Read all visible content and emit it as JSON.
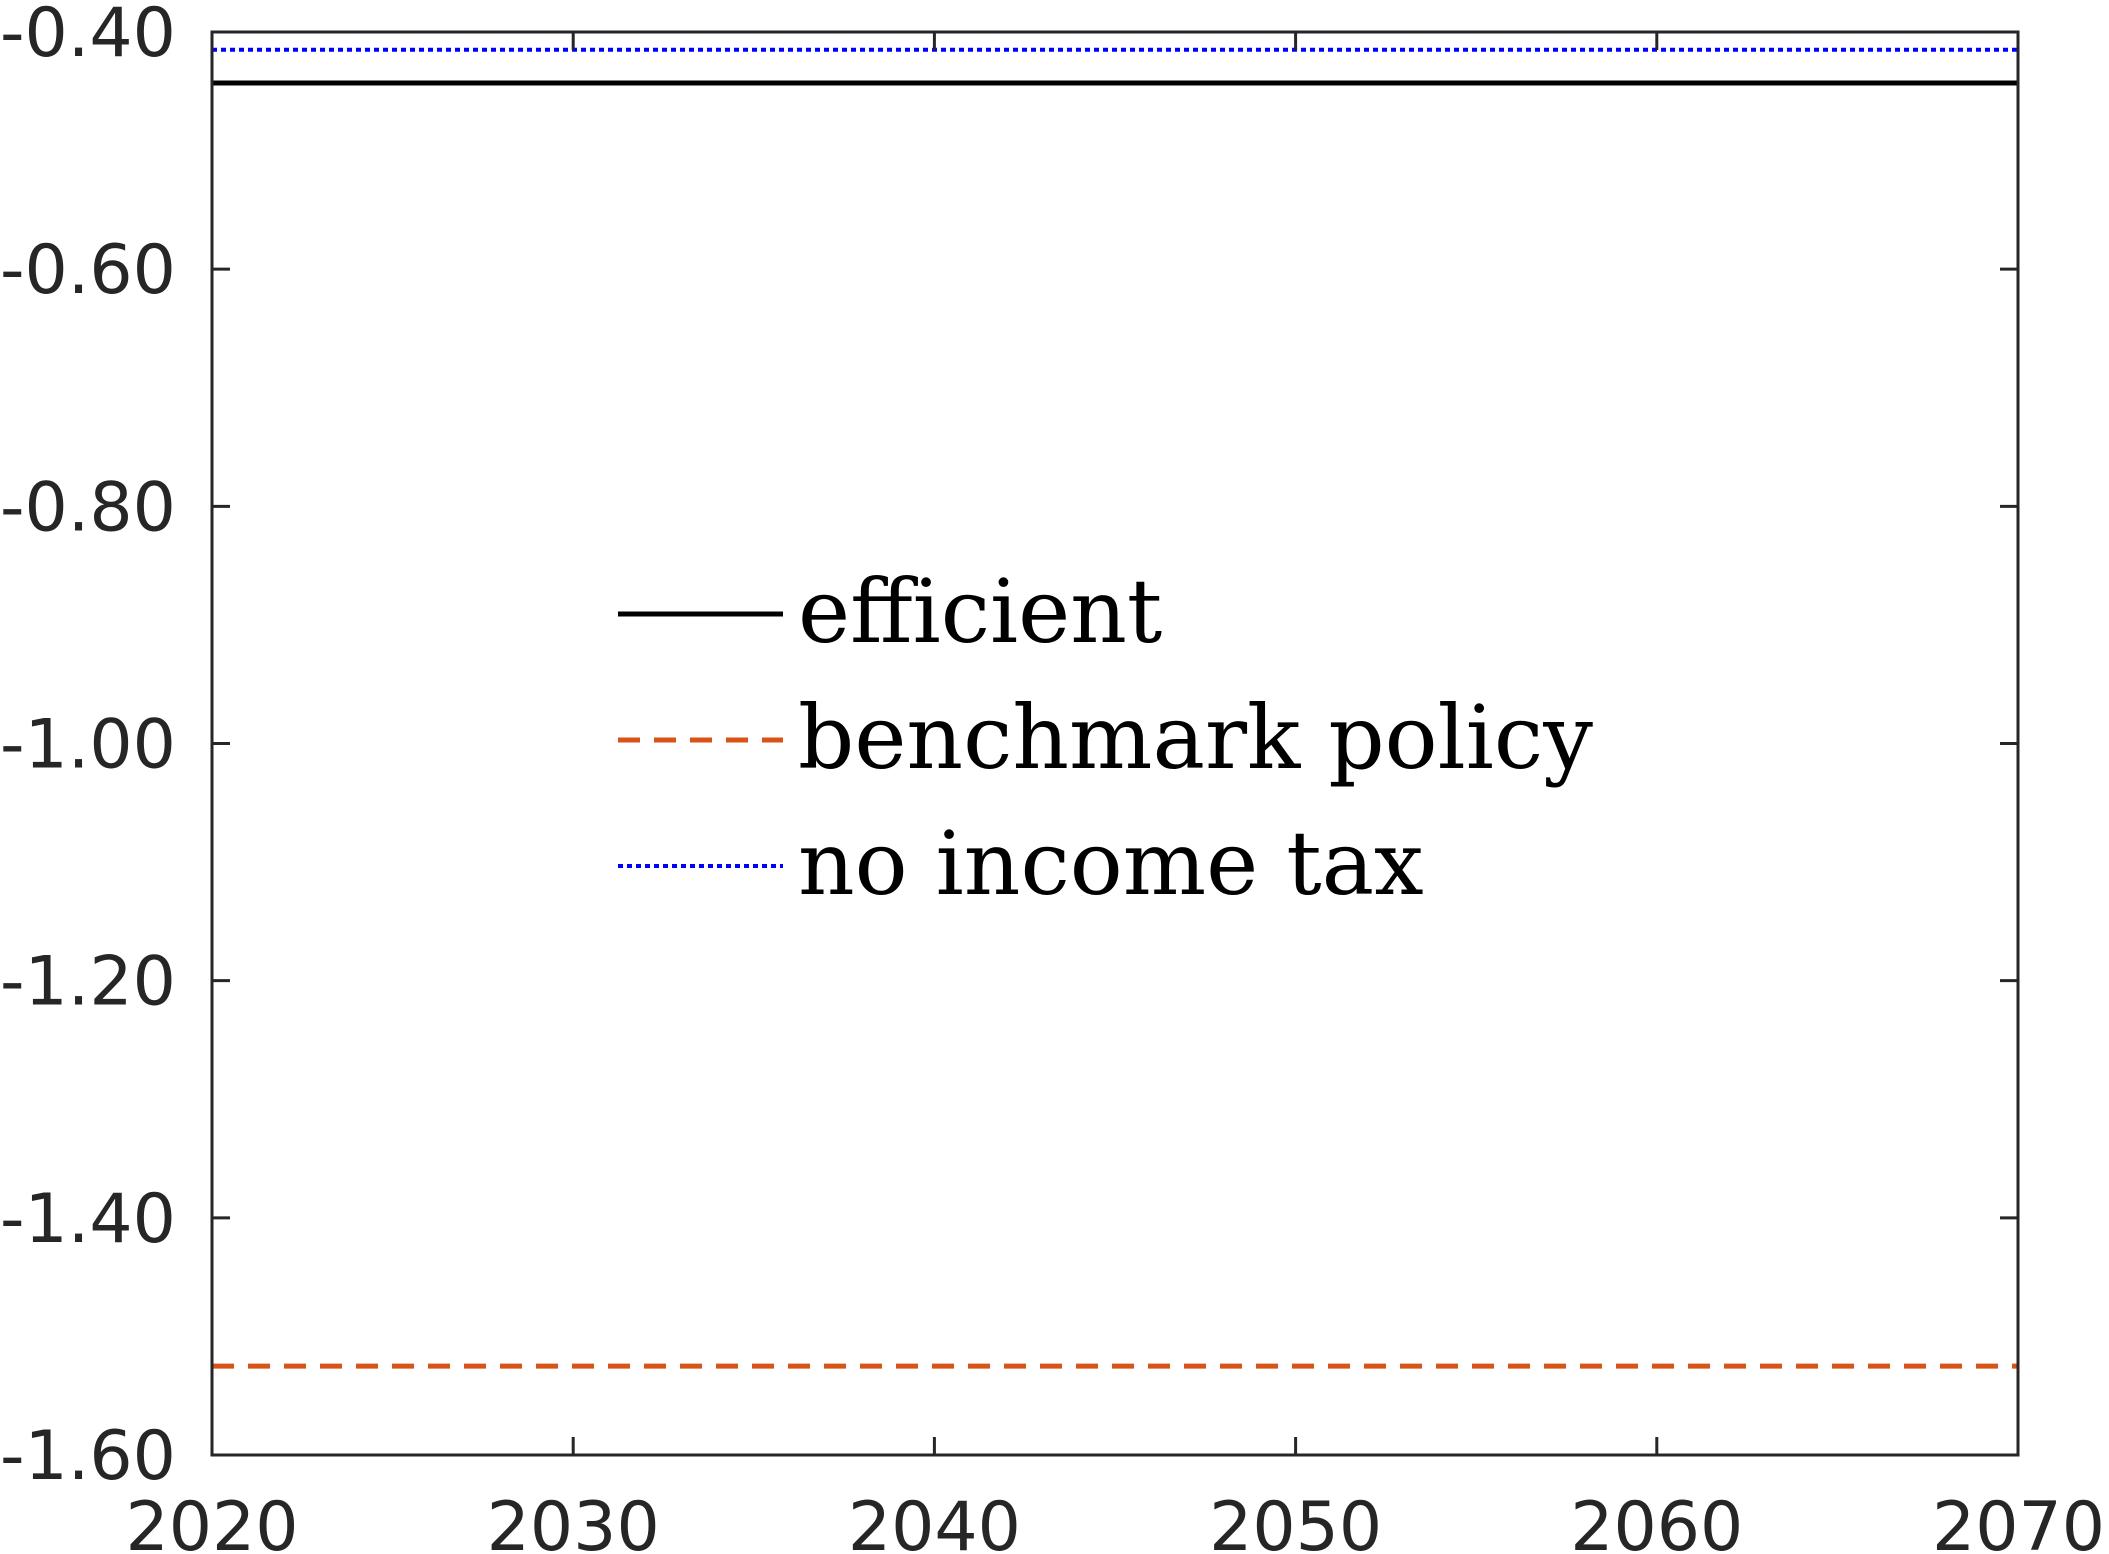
{
  "chart_data": {
    "type": "line",
    "title": "",
    "xlabel": "",
    "ylabel": "",
    "xlim": [
      2020,
      2070
    ],
    "ylim": [
      -1.6,
      -0.4
    ],
    "x_ticks": [
      "2020",
      "2030",
      "2040",
      "2050",
      "2060",
      "2070"
    ],
    "y_ticks": [
      "-0.40",
      "-0.60",
      "-0.80",
      "-1.00",
      "-1.20",
      "-1.40",
      "-1.60"
    ],
    "grid": false,
    "legend_position": "center",
    "series": [
      {
        "name": "efficient",
        "style": "solid",
        "color": "#000000",
        "x": [
          2020,
          2070
        ],
        "y": [
          -0.443,
          -0.443
        ]
      },
      {
        "name": "benchmark policy",
        "style": "dashed",
        "color": "#d95319",
        "x": [
          2020,
          2070
        ],
        "y": [
          -1.525,
          -1.525
        ]
      },
      {
        "name": "no income tax",
        "style": "dotted",
        "color": "#0000ff",
        "x": [
          2020,
          2070
        ],
        "y": [
          -0.415,
          -0.415
        ]
      }
    ]
  }
}
